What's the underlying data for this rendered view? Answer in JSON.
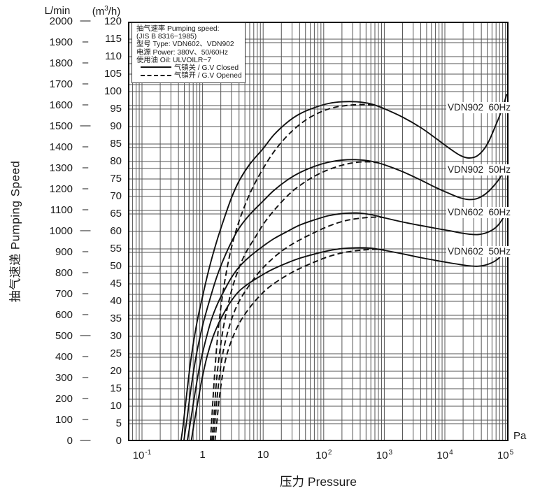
{
  "axes": {
    "y_left_unit": "L/min",
    "y_right_unit_pre": "(m",
    "y_right_unit_sup": "3",
    "y_right_unit_post": "/h)",
    "y_title": "抽气速递 Pumping Speed",
    "x_title": "压力 Pressure",
    "x_unit": "Pa"
  },
  "legend": {
    "line1": "抽气速率 Pumping speed:",
    "line2": "(JIS B 8316−1985)",
    "line3": "型号 Type:  VDN602、VDN902",
    "line4": "电源 Power:  380V、50/60Hz",
    "line5": "使用油 Oil:  ULVOILR−7",
    "solid_label": "气镇关 / G.V Closed",
    "dashed_label": "气镇开 / G.V Opened"
  },
  "chart_data": {
    "type": "line",
    "title": "",
    "xlabel": "压力 Pressure (Pa)",
    "ylabel": "抽气速递 Pumping Speed",
    "x_axis": {
      "scale": "log",
      "unit": "Pa",
      "range_decades": [
        -1.23,
        5.05
      ],
      "tick_labels": [
        {
          "base": "10",
          "exp": "-1"
        },
        {
          "base": "1",
          "exp": ""
        },
        {
          "base": "10",
          "exp": ""
        },
        {
          "base": "10",
          "exp": "2"
        },
        {
          "base": "10",
          "exp": "3"
        },
        {
          "base": "10",
          "exp": "4"
        },
        {
          "base": "10",
          "exp": "5"
        }
      ],
      "tick_decades": [
        -1,
        0,
        1,
        2,
        3,
        4,
        5
      ],
      "grid": "log-minor"
    },
    "y_axis_left": {
      "unit": "L/min",
      "min": 0,
      "max": 2000,
      "step": 100,
      "long_dash_step": 500,
      "ticks": [
        2000,
        1900,
        1800,
        1700,
        1600,
        1500,
        1400,
        1300,
        1200,
        1100,
        1000,
        900,
        800,
        700,
        600,
        500,
        400,
        300,
        200,
        100,
        0
      ]
    },
    "y_axis_right": {
      "unit": "m3/h",
      "min": 0,
      "max": 120,
      "step": 5,
      "ticks": [
        120,
        115,
        110,
        105,
        100,
        95,
        90,
        85,
        80,
        75,
        70,
        65,
        60,
        55,
        50,
        45,
        40,
        35,
        30,
        25,
        20,
        15,
        10,
        5,
        0
      ]
    },
    "series": [
      {
        "name": "VDN902  60Hz",
        "gas_ballast": "G.V Closed",
        "style": "solid",
        "points": [
          [
            0.44,
            0
          ],
          [
            0.48,
            80
          ],
          [
            0.55,
            230
          ],
          [
            0.65,
            400
          ],
          [
            0.8,
            560
          ],
          [
            1,
            690
          ],
          [
            1.3,
            830
          ],
          [
            1.7,
            950
          ],
          [
            2.2,
            1050
          ],
          [
            3,
            1160
          ],
          [
            4,
            1240
          ],
          [
            6,
            1320
          ],
          [
            10,
            1395
          ],
          [
            15,
            1460
          ],
          [
            25,
            1520
          ],
          [
            40,
            1560
          ],
          [
            70,
            1590
          ],
          [
            120,
            1610
          ],
          [
            200,
            1618
          ],
          [
            350,
            1618
          ],
          [
            600,
            1608
          ],
          [
            1000,
            1585
          ],
          [
            2000,
            1545
          ],
          [
            4000,
            1495
          ],
          [
            7000,
            1445
          ],
          [
            12000,
            1395
          ],
          [
            18000,
            1362
          ],
          [
            25000,
            1350
          ],
          [
            35000,
            1362
          ],
          [
            50000,
            1415
          ],
          [
            70000,
            1510
          ],
          [
            90000,
            1590
          ],
          [
            105000,
            1655
          ]
        ]
      },
      {
        "name": "VDN902  50Hz",
        "gas_ballast": "G.V Closed",
        "style": "solid",
        "points": [
          [
            0.49,
            0
          ],
          [
            0.55,
            100
          ],
          [
            0.65,
            260
          ],
          [
            0.8,
            420
          ],
          [
            1,
            550
          ],
          [
            1.3,
            670
          ],
          [
            1.7,
            780
          ],
          [
            2.2,
            865
          ],
          [
            3,
            950
          ],
          [
            4,
            1015
          ],
          [
            6,
            1080
          ],
          [
            10,
            1145
          ],
          [
            15,
            1195
          ],
          [
            25,
            1245
          ],
          [
            40,
            1280
          ],
          [
            70,
            1310
          ],
          [
            120,
            1330
          ],
          [
            200,
            1340
          ],
          [
            350,
            1342
          ],
          [
            600,
            1335
          ],
          [
            1000,
            1318
          ],
          [
            2000,
            1285
          ],
          [
            4000,
            1245
          ],
          [
            7000,
            1210
          ],
          [
            12000,
            1180
          ],
          [
            18000,
            1160
          ],
          [
            25000,
            1152
          ],
          [
            35000,
            1158
          ],
          [
            50000,
            1185
          ],
          [
            70000,
            1230
          ],
          [
            90000,
            1275
          ],
          [
            105000,
            1310
          ]
        ]
      },
      {
        "name": "VDN602  60Hz",
        "gas_ballast": "G.V Closed",
        "style": "solid",
        "points": [
          [
            0.56,
            0
          ],
          [
            0.63,
            90
          ],
          [
            0.75,
            230
          ],
          [
            0.9,
            360
          ],
          [
            1.1,
            470
          ],
          [
            1.4,
            580
          ],
          [
            1.8,
            660
          ],
          [
            2.3,
            720
          ],
          [
            3,
            780
          ],
          [
            4,
            830
          ],
          [
            6,
            880
          ],
          [
            10,
            930
          ],
          [
            15,
            965
          ],
          [
            25,
            1000
          ],
          [
            40,
            1030
          ],
          [
            70,
            1055
          ],
          [
            120,
            1075
          ],
          [
            200,
            1085
          ],
          [
            350,
            1088
          ],
          [
            600,
            1080
          ],
          [
            1000,
            1065
          ],
          [
            2000,
            1045
          ],
          [
            4000,
            1028
          ],
          [
            7000,
            1015
          ],
          [
            12000,
            1003
          ],
          [
            18000,
            993
          ],
          [
            25000,
            987
          ],
          [
            35000,
            985
          ],
          [
            50000,
            995
          ],
          [
            70000,
            1020
          ],
          [
            90000,
            1060
          ],
          [
            105000,
            1100
          ]
        ]
      },
      {
        "name": "VDN602  50Hz",
        "gas_ballast": "G.V Closed",
        "style": "solid",
        "points": [
          [
            0.65,
            0
          ],
          [
            0.72,
            80
          ],
          [
            0.85,
            200
          ],
          [
            1,
            310
          ],
          [
            1.2,
            410
          ],
          [
            1.5,
            500
          ],
          [
            1.9,
            570
          ],
          [
            2.4,
            625
          ],
          [
            3,
            670
          ],
          [
            4,
            715
          ],
          [
            6,
            755
          ],
          [
            10,
            795
          ],
          [
            15,
            822
          ],
          [
            25,
            850
          ],
          [
            40,
            872
          ],
          [
            70,
            892
          ],
          [
            120,
            908
          ],
          [
            200,
            918
          ],
          [
            350,
            922
          ],
          [
            600,
            920
          ],
          [
            1000,
            910
          ],
          [
            2000,
            893
          ],
          [
            4000,
            875
          ],
          [
            7000,
            862
          ],
          [
            12000,
            850
          ],
          [
            18000,
            842
          ],
          [
            25000,
            836
          ],
          [
            35000,
            834
          ],
          [
            50000,
            842
          ],
          [
            70000,
            862
          ],
          [
            90000,
            892
          ],
          [
            105000,
            922
          ]
        ]
      },
      {
        "name": "VDN902 60Hz (G.V Opened)",
        "gas_ballast": "G.V Opened",
        "style": "dashed",
        "points": [
          [
            1.35,
            0
          ],
          [
            1.45,
            150
          ],
          [
            1.6,
            340
          ],
          [
            1.8,
            520
          ],
          [
            2.1,
            680
          ],
          [
            2.6,
            840
          ],
          [
            3.3,
            970
          ],
          [
            4.5,
            1090
          ],
          [
            6.5,
            1200
          ],
          [
            10,
            1300
          ],
          [
            16,
            1390
          ],
          [
            28,
            1470
          ],
          [
            50,
            1530
          ],
          [
            90,
            1570
          ],
          [
            160,
            1593
          ],
          [
            300,
            1603
          ],
          [
            500,
            1605
          ],
          [
            800,
            1598
          ]
        ]
      },
      {
        "name": "VDN902 50Hz (G.V Opened)",
        "gas_ballast": "G.V Opened",
        "style": "dashed",
        "points": [
          [
            1.42,
            0
          ],
          [
            1.55,
            130
          ],
          [
            1.7,
            290
          ],
          [
            1.95,
            440
          ],
          [
            2.3,
            570
          ],
          [
            2.9,
            700
          ],
          [
            3.7,
            800
          ],
          [
            5,
            890
          ],
          [
            7.5,
            975
          ],
          [
            11,
            1050
          ],
          [
            18,
            1125
          ],
          [
            30,
            1190
          ],
          [
            55,
            1245
          ],
          [
            100,
            1285
          ],
          [
            180,
            1312
          ],
          [
            320,
            1328
          ],
          [
            550,
            1332
          ],
          [
            850,
            1326
          ]
        ]
      },
      {
        "name": "VDN602 60Hz (G.V Opened)",
        "gas_ballast": "G.V Opened",
        "style": "dashed",
        "points": [
          [
            1.5,
            0
          ],
          [
            1.62,
            110
          ],
          [
            1.8,
            250
          ],
          [
            2.05,
            380
          ],
          [
            2.4,
            480
          ],
          [
            3,
            580
          ],
          [
            3.9,
            660
          ],
          [
            5.5,
            730
          ],
          [
            8,
            795
          ],
          [
            12,
            850
          ],
          [
            20,
            905
          ],
          [
            35,
            950
          ],
          [
            65,
            990
          ],
          [
            120,
            1025
          ],
          [
            220,
            1050
          ],
          [
            400,
            1063
          ],
          [
            700,
            1068
          ],
          [
            1000,
            1066
          ]
        ]
      },
      {
        "name": "VDN602 50Hz (G.V Opened)",
        "gas_ballast": "G.V Opened",
        "style": "dashed",
        "points": [
          [
            1.6,
            0
          ],
          [
            1.72,
            90
          ],
          [
            1.9,
            210
          ],
          [
            2.15,
            320
          ],
          [
            2.5,
            410
          ],
          [
            3.1,
            490
          ],
          [
            4,
            560
          ],
          [
            5.6,
            625
          ],
          [
            8,
            680
          ],
          [
            12,
            730
          ],
          [
            20,
            775
          ],
          [
            35,
            815
          ],
          [
            65,
            850
          ],
          [
            120,
            880
          ],
          [
            220,
            900
          ],
          [
            400,
            910
          ],
          [
            700,
            915
          ],
          [
            1000,
            912
          ]
        ]
      }
    ],
    "curve_labels": [
      {
        "text": "VDN902  60Hz"
      },
      {
        "text": "VDN902  50Hz"
      },
      {
        "text": "VDN602  60Hz"
      },
      {
        "text": "VDN602  50Hz"
      }
    ],
    "colors": {
      "line": "#111111",
      "grid": "#555555",
      "border": "#000000",
      "background": "#ffffff"
    },
    "legend_position": "top-left"
  }
}
